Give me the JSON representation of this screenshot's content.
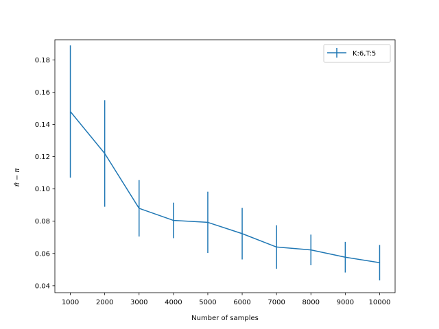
{
  "chart_data": {
    "type": "line",
    "title": "",
    "xlabel": "Number of samples",
    "ylabel": "π̂ − π",
    "x": [
      1000,
      2000,
      3000,
      4000,
      5000,
      6000,
      7000,
      8000,
      9000,
      10000
    ],
    "x_ticks": [
      "1000",
      "2000",
      "3000",
      "4000",
      "5000",
      "6000",
      "7000",
      "8000",
      "9000",
      "10000"
    ],
    "y_ticks": [
      "0.04",
      "0.06",
      "0.08",
      "0.10",
      "0.12",
      "0.14",
      "0.16",
      "0.18"
    ],
    "xlim": [
      550,
      10450
    ],
    "ylim": [
      0.0357,
      0.1925
    ],
    "grid": false,
    "legend_position": "top-right",
    "series": [
      {
        "name": "K:6,T:5",
        "color": "#1f77b4",
        "values": [
          0.148,
          0.122,
          0.088,
          0.0805,
          0.0793,
          0.0723,
          0.064,
          0.0622,
          0.0577,
          0.0543
        ],
        "error": [
          0.041,
          0.033,
          0.0175,
          0.011,
          0.019,
          0.016,
          0.0135,
          0.0095,
          0.0095,
          0.011
        ]
      }
    ]
  }
}
